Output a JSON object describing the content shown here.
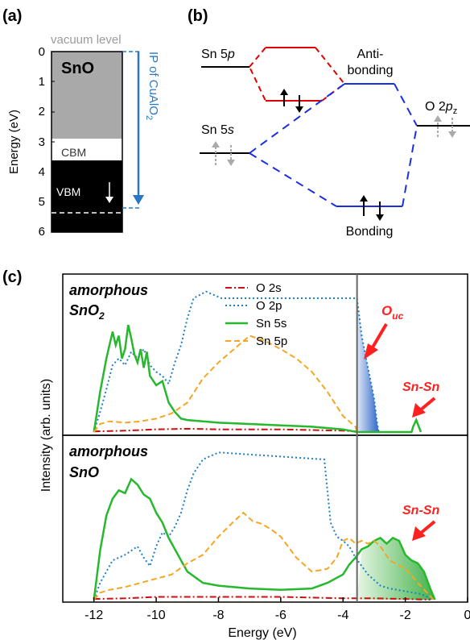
{
  "panel_a": {
    "label": "(a)",
    "ylabel": "Energy (eV)",
    "material": "SnO",
    "vacuum_label": "vacuum level",
    "cbm_label": "CBM",
    "vbm_label": "VBM",
    "ip_label": "IP of CuAlO",
    "ip_sub": "2",
    "ticks": [
      "0",
      "1",
      "2",
      "3",
      "4",
      "5",
      "6"
    ]
  },
  "panel_b": {
    "label": "(b)",
    "sn5p": "Sn 5",
    "sn5p_italic": "p",
    "sn5s": "Sn 5",
    "sn5s_italic": "s",
    "antibonding_1": "Anti-",
    "antibonding_2": "bonding",
    "bonding": "Bonding",
    "o2p": "O 2",
    "o2p_italic": "p",
    "o2p_sub": "z"
  },
  "panel_c": {
    "label": "(c)",
    "ylabel": "Intensity (arb. units)",
    "xlabel": "Energy (eV)",
    "top_title_1": "amorphous",
    "top_title_2": "SnO",
    "top_title_2_sub": "2",
    "bottom_title_1": "amorphous",
    "bottom_title_2": "SnO",
    "annot_ouc": "O",
    "annot_ouc_sub": "uc",
    "annot_snsn_top": "Sn-Sn",
    "annot_snsn_bottom": "Sn-Sn"
  },
  "chart_data": [
    {
      "type": "bar",
      "panel": "(a)",
      "ylabel": "Energy (eV)",
      "ylim": [
        6,
        0
      ],
      "yticks": [
        0,
        1,
        2,
        3,
        4,
        5,
        6
      ],
      "bands": [
        {
          "name": "conduction band",
          "from": 0,
          "to": 3.7
        },
        {
          "name": "gap",
          "from": 3.7,
          "to": 4.7
        },
        {
          "name": "valence band",
          "from": 4.7,
          "to": 6
        }
      ],
      "levels": {
        "vacuum_level": 0,
        "CBM": 3.7,
        "VBM": 4.7,
        "IP_of_CuAlO2": 5.35
      }
    },
    {
      "type": "line",
      "panel": "(c) amorphous SnO2",
      "xlabel": "Energy (eV)",
      "ylabel": "Intensity (arb. units)",
      "xlim": [
        -13,
        0
      ],
      "xticks": [
        -12,
        -10,
        -8,
        -6,
        -4,
        -2,
        0
      ],
      "ylim": [
        0,
        1
      ],
      "fermi_line": -3.55,
      "legend_position": "top-center",
      "series": [
        {
          "name": "O 2s",
          "color": "#cc1111",
          "style": "dashdot",
          "points": [
            [
              -12,
              0.005
            ],
            [
              -11,
              0.01
            ],
            [
              -10,
              0.02
            ],
            [
              -9,
              0.025
            ],
            [
              -8,
              0.02
            ],
            [
              -7,
              0.02
            ],
            [
              -6,
              0.02
            ],
            [
              -5,
              0.015
            ],
            [
              -4,
              0.01
            ],
            [
              -3.55,
              0.005
            ]
          ]
        },
        {
          "name": "O 2p",
          "color": "#1f7fc4",
          "style": "dotted",
          "points": [
            [
              -12,
              0.0
            ],
            [
              -11.8,
              0.15
            ],
            [
              -11.6,
              0.32
            ],
            [
              -11.4,
              0.5
            ],
            [
              -11.2,
              0.55
            ],
            [
              -11.0,
              0.5
            ],
            [
              -10.8,
              0.6
            ],
            [
              -10.6,
              0.55
            ],
            [
              -10.4,
              0.62
            ],
            [
              -10.2,
              0.5
            ],
            [
              -10.0,
              0.45
            ],
            [
              -9.8,
              0.42
            ],
            [
              -9.6,
              0.36
            ],
            [
              -9.4,
              0.52
            ],
            [
              -9.2,
              0.65
            ],
            [
              -9.0,
              0.85
            ],
            [
              -8.8,
              1.0
            ],
            [
              -8.4,
              1.05
            ],
            [
              -8.1,
              1.02
            ],
            [
              -7.9,
              1.0
            ],
            [
              -3.55,
              1.0
            ],
            [
              -3.4,
              0.72
            ],
            [
              -3.2,
              0.48
            ],
            [
              -3.0,
              0.25
            ],
            [
              -2.9,
              0.06
            ],
            [
              -2.85,
              0.0
            ]
          ]
        },
        {
          "name": "Sn 5s",
          "color": "#27b82d",
          "style": "solid",
          "points": [
            [
              -12,
              0.0
            ],
            [
              -11.8,
              0.3
            ],
            [
              -11.6,
              0.55
            ],
            [
              -11.4,
              0.75
            ],
            [
              -11.3,
              0.65
            ],
            [
              -11.2,
              0.72
            ],
            [
              -11.1,
              0.55
            ],
            [
              -11.0,
              0.62
            ],
            [
              -10.9,
              0.8
            ],
            [
              -10.8,
              0.7
            ],
            [
              -10.7,
              0.58
            ],
            [
              -10.6,
              0.52
            ],
            [
              -10.5,
              0.62
            ],
            [
              -10.4,
              0.48
            ],
            [
              -10.3,
              0.6
            ],
            [
              -10.2,
              0.42
            ],
            [
              -10.0,
              0.35
            ],
            [
              -9.8,
              0.38
            ],
            [
              -9.6,
              0.22
            ],
            [
              -9.4,
              0.15
            ],
            [
              -9.2,
              0.1
            ],
            [
              -9.0,
              0.09
            ],
            [
              -8.5,
              0.08
            ],
            [
              -8.0,
              0.07
            ],
            [
              -7.0,
              0.06
            ],
            [
              -6.0,
              0.05
            ],
            [
              -5.0,
              0.04
            ],
            [
              -4.0,
              0.02
            ],
            [
              -3.55,
              0.0
            ],
            [
              -1.8,
              0.0
            ],
            [
              -1.75,
              0.04
            ],
            [
              -1.65,
              0.09
            ],
            [
              -1.55,
              0.03
            ],
            [
              -1.5,
              0.0
            ]
          ]
        },
        {
          "name": "Sn 5p",
          "color": "#f5a623",
          "style": "dashed",
          "points": [
            [
              -12,
              0.0
            ],
            [
              -11.8,
              0.06
            ],
            [
              -11.5,
              0.08
            ],
            [
              -11.0,
              0.07
            ],
            [
              -10.5,
              0.08
            ],
            [
              -10.0,
              0.1
            ],
            [
              -9.5,
              0.14
            ],
            [
              -9.0,
              0.22
            ],
            [
              -8.5,
              0.4
            ],
            [
              -8.0,
              0.52
            ],
            [
              -7.5,
              0.62
            ],
            [
              -7.0,
              0.72
            ],
            [
              -6.5,
              0.68
            ],
            [
              -6.0,
              0.62
            ],
            [
              -5.5,
              0.55
            ],
            [
              -5.0,
              0.45
            ],
            [
              -4.5,
              0.3
            ],
            [
              -4.0,
              0.12
            ],
            [
              -3.6,
              0.04
            ],
            [
              -3.55,
              0.0
            ]
          ]
        }
      ]
    },
    {
      "type": "line",
      "panel": "(c) amorphous SnO",
      "xlabel": "Energy (eV)",
      "ylabel": "Intensity (arb. units)",
      "xlim": [
        -13,
        0
      ],
      "xticks": [
        -12,
        -10,
        -8,
        -6,
        -4,
        -2,
        0
      ],
      "ylim": [
        0,
        1
      ],
      "fermi_line": -3.55,
      "series": [
        {
          "name": "O 2s",
          "color": "#cc1111",
          "style": "dashdot",
          "points": [
            [
              -12,
              0.005
            ],
            [
              -11,
              0.01
            ],
            [
              -10,
              0.02
            ],
            [
              -9,
              0.02
            ],
            [
              -8,
              0.02
            ],
            [
              -7,
              0.02
            ],
            [
              -6,
              0.02
            ],
            [
              -5,
              0.015
            ],
            [
              -4,
              0.01
            ],
            [
              -3,
              0.01
            ],
            [
              -2,
              0.005
            ],
            [
              -1.2,
              0.0
            ]
          ]
        },
        {
          "name": "O 2p",
          "color": "#1f7fc4",
          "style": "dotted",
          "points": [
            [
              -12,
              0.0
            ],
            [
              -11.8,
              0.12
            ],
            [
              -11.6,
              0.2
            ],
            [
              -11.4,
              0.28
            ],
            [
              -11.0,
              0.32
            ],
            [
              -10.6,
              0.38
            ],
            [
              -10.4,
              0.3
            ],
            [
              -10.2,
              0.24
            ],
            [
              -10.0,
              0.38
            ],
            [
              -9.8,
              0.48
            ],
            [
              -9.6,
              0.45
            ],
            [
              -9.4,
              0.52
            ],
            [
              -9.2,
              0.62
            ],
            [
              -9.0,
              0.78
            ],
            [
              -8.8,
              0.9
            ],
            [
              -8.5,
              1.0
            ],
            [
              -8.0,
              1.05
            ],
            [
              -4.6,
              1.0
            ],
            [
              -4.4,
              0.55
            ],
            [
              -4.2,
              0.45
            ],
            [
              -4.0,
              0.42
            ],
            [
              -3.8,
              0.38
            ],
            [
              -3.6,
              0.3
            ],
            [
              -3.4,
              0.24
            ],
            [
              -3.2,
              0.18
            ],
            [
              -3.0,
              0.14
            ],
            [
              -2.8,
              0.1
            ],
            [
              -2.5,
              0.08
            ],
            [
              -2.0,
              0.06
            ],
            [
              -1.5,
              0.04
            ],
            [
              -1.1,
              0.0
            ]
          ]
        },
        {
          "name": "Sn 5s",
          "color": "#27b82d",
          "style": "solid",
          "points": [
            [
              -12,
              0.0
            ],
            [
              -11.8,
              0.35
            ],
            [
              -11.6,
              0.6
            ],
            [
              -11.4,
              0.72
            ],
            [
              -11.2,
              0.78
            ],
            [
              -11.0,
              0.76
            ],
            [
              -10.8,
              0.86
            ],
            [
              -10.6,
              0.82
            ],
            [
              -10.4,
              0.75
            ],
            [
              -10.2,
              0.72
            ],
            [
              -10.0,
              0.62
            ],
            [
              -9.8,
              0.55
            ],
            [
              -9.6,
              0.44
            ],
            [
              -9.4,
              0.36
            ],
            [
              -9.2,
              0.28
            ],
            [
              -9.0,
              0.2
            ],
            [
              -8.5,
              0.12
            ],
            [
              -8.0,
              0.1
            ],
            [
              -7.0,
              0.08
            ],
            [
              -6.0,
              0.07
            ],
            [
              -5.0,
              0.08
            ],
            [
              -4.5,
              0.12
            ],
            [
              -4.0,
              0.18
            ],
            [
              -3.8,
              0.25
            ],
            [
              -3.6,
              0.3
            ],
            [
              -3.4,
              0.36
            ],
            [
              -3.2,
              0.38
            ],
            [
              -3.0,
              0.42
            ],
            [
              -2.8,
              0.44
            ],
            [
              -2.6,
              0.4
            ],
            [
              -2.4,
              0.44
            ],
            [
              -2.2,
              0.42
            ],
            [
              -2.0,
              0.32
            ],
            [
              -1.8,
              0.28
            ],
            [
              -1.6,
              0.26
            ],
            [
              -1.4,
              0.2
            ],
            [
              -1.2,
              0.08
            ],
            [
              -1.05,
              0.0
            ]
          ]
        },
        {
          "name": "Sn 5p",
          "color": "#f5a623",
          "style": "dashed",
          "points": [
            [
              -12,
              0.0
            ],
            [
              -11.8,
              0.05
            ],
            [
              -11.5,
              0.07
            ],
            [
              -11.0,
              0.09
            ],
            [
              -10.5,
              0.12
            ],
            [
              -10.0,
              0.15
            ],
            [
              -9.5,
              0.18
            ],
            [
              -9.0,
              0.26
            ],
            [
              -8.5,
              0.32
            ],
            [
              -8.0,
              0.45
            ],
            [
              -7.5,
              0.56
            ],
            [
              -7.2,
              0.62
            ],
            [
              -6.9,
              0.56
            ],
            [
              -6.6,
              0.54
            ],
            [
              -6.3,
              0.5
            ],
            [
              -6.0,
              0.45
            ],
            [
              -5.5,
              0.3
            ],
            [
              -5.0,
              0.2
            ],
            [
              -4.5,
              0.22
            ],
            [
              -4.2,
              0.3
            ],
            [
              -4.0,
              0.42
            ],
            [
              -3.8,
              0.44
            ],
            [
              -3.6,
              0.4
            ],
            [
              -3.4,
              0.42
            ],
            [
              -3.2,
              0.4
            ],
            [
              -3.0,
              0.42
            ],
            [
              -2.8,
              0.38
            ],
            [
              -2.5,
              0.28
            ],
            [
              -2.0,
              0.22
            ],
            [
              -1.6,
              0.12
            ],
            [
              -1.3,
              0.05
            ],
            [
              -1.1,
              0.0
            ]
          ]
        }
      ]
    }
  ]
}
